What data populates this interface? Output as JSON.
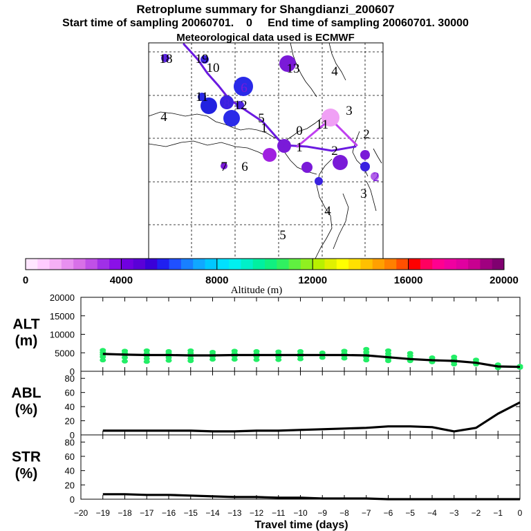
{
  "header": {
    "title": "Retroplume summary for Shangdianzi_200607",
    "sampling": "Start time of sampling 20060701.    0     End time of sampling 20060701. 30000",
    "met": "Meteorological data used is ECMWF"
  },
  "colorbar": {
    "label": "Altitude (m)",
    "ticks": [
      "0",
      "4000",
      "8000",
      "12000",
      "16000",
      "20000"
    ],
    "colors": [
      "#ffe6ff",
      "#ffccff",
      "#f5b0f5",
      "#e890f0",
      "#d870e8",
      "#c050e8",
      "#a030e8",
      "#8a10e8",
      "#7000e0",
      "#5a00d8",
      "#3a00d8",
      "#2020f0",
      "#2050ff",
      "#1880ff",
      "#10a8ff",
      "#00c8ff",
      "#00e0ff",
      "#00f0f0",
      "#00f0c8",
      "#00f0a0",
      "#10f080",
      "#30f060",
      "#60f040",
      "#90f020",
      "#b8f000",
      "#e0f000",
      "#ffff00",
      "#ffe000",
      "#ffc000",
      "#ffa000",
      "#ff8000",
      "#ff5000",
      "#ff0000",
      "#ff0060",
      "#ff0090",
      "#f000a0",
      "#e000a0",
      "#c80090",
      "#a00080",
      "#800070"
    ]
  },
  "map": {
    "labels": [
      {
        "text": "18",
        "color": "#000000"
      },
      {
        "text": "19",
        "color": "#000000"
      },
      {
        "text": "10",
        "color": "#000000"
      },
      {
        "text": "7",
        "color": "#7a1ad8"
      },
      {
        "text": "13",
        "color": "#000000"
      },
      {
        "text": "4",
        "color": "#000000"
      },
      {
        "text": "6",
        "color": "#7a1ad8"
      },
      {
        "text": "11",
        "color": "#000000"
      },
      {
        "text": "10",
        "color": "#2222e0"
      },
      {
        "text": "8",
        "color": "#4a22e0"
      },
      {
        "text": "12",
        "color": "#000000"
      },
      {
        "text": "5",
        "color": "#2a2ae8"
      },
      {
        "text": "4",
        "color": "#000000"
      },
      {
        "text": "5",
        "color": "#000000"
      },
      {
        "text": "1",
        "color": "#000000"
      },
      {
        "text": "0",
        "color": "#000000"
      },
      {
        "text": "11",
        "color": "#000000"
      },
      {
        "text": "3",
        "color": "#000000"
      },
      {
        "text": "2",
        "color": "#000000"
      },
      {
        "text": "4",
        "color": "#7a1ad8"
      },
      {
        "text": "1",
        "color": "#000000"
      },
      {
        "text": "5",
        "color": "#a020e0"
      },
      {
        "text": "2",
        "color": "#000000"
      },
      {
        "text": "3",
        "color": "#7a1ad8"
      },
      {
        "text": "8",
        "color": "#7a1ad8"
      },
      {
        "text": "4",
        "color": "#7a1ad8"
      },
      {
        "text": "7",
        "color": "#000000"
      },
      {
        "text": "6",
        "color": "#000000"
      },
      {
        "text": "2",
        "color": "#7a1ad8"
      },
      {
        "text": "3",
        "color": "#000000"
      },
      {
        "text": "4",
        "color": "#000000"
      },
      {
        "text": "5",
        "color": "#000000"
      }
    ]
  },
  "chart_data": [
    {
      "type": "scatter",
      "panel": "ALT",
      "ylabel": "ALT\n(m)",
      "ylabel_lines": [
        "ALT",
        "(m)"
      ],
      "xlim": [
        -20,
        0
      ],
      "ylim": [
        0,
        20000
      ],
      "yticks": [
        "20000",
        "15000",
        "10000",
        "5000",
        "0"
      ],
      "ytick_values": [
        20000,
        15000,
        10000,
        5000,
        0
      ],
      "x": [
        -19,
        -18,
        -17,
        -16,
        -15,
        -14,
        -13,
        -12,
        -11,
        -10,
        -9,
        -8,
        -7,
        -6,
        -5,
        -4,
        -3,
        -2,
        -1,
        0
      ],
      "mean_line": [
        4700,
        4500,
        4400,
        4400,
        4300,
        4300,
        4400,
        4400,
        4400,
        4400,
        4400,
        4400,
        4300,
        3800,
        3300,
        3000,
        2800,
        2300,
        1300,
        1200
      ],
      "points": [
        {
          "x": -19,
          "ys": [
            5700,
            5100,
            4500,
            3900,
            3000
          ]
        },
        {
          "x": -18,
          "ys": [
            5500,
            4900,
            4400,
            3700,
            2700
          ]
        },
        {
          "x": -17,
          "ys": [
            5600,
            4800,
            4200,
            3400,
            2600
          ]
        },
        {
          "x": -16,
          "ys": [
            5400,
            4900,
            4300,
            3700,
            2900
          ]
        },
        {
          "x": -15,
          "ys": [
            5600,
            4900,
            4200,
            3500,
            2800
          ]
        },
        {
          "x": -14,
          "ys": [
            5200,
            4600,
            4000,
            3200
          ]
        },
        {
          "x": -13,
          "ys": [
            5500,
            4800,
            4100,
            3200
          ]
        },
        {
          "x": -12,
          "ys": [
            5400,
            4700,
            4000,
            3100
          ]
        },
        {
          "x": -11,
          "ys": [
            5300,
            4600,
            3900,
            3100
          ]
        },
        {
          "x": -10,
          "ys": [
            5400,
            4700,
            4100,
            3300
          ]
        },
        {
          "x": -9,
          "ys": [
            5000,
            4400,
            3700
          ]
        },
        {
          "x": -8,
          "ys": [
            5500,
            4800,
            4200,
            3500
          ]
        },
        {
          "x": -7,
          "ys": [
            6000,
            5200,
            4500,
            3800,
            3000
          ]
        },
        {
          "x": -6,
          "ys": [
            5600,
            4800,
            4100,
            3400,
            2800
          ]
        },
        {
          "x": -5,
          "ys": [
            4900,
            4200,
            3500,
            2800
          ]
        },
        {
          "x": -4,
          "ys": [
            3700,
            3100,
            2500
          ]
        },
        {
          "x": -3,
          "ys": [
            3900,
            3200,
            2500,
            1900
          ]
        },
        {
          "x": -2,
          "ys": [
            3100,
            2500,
            1900
          ]
        },
        {
          "x": -1,
          "ys": [
            1800,
            1300,
            900
          ]
        },
        {
          "x": 0,
          "ys": [
            1400,
            1000
          ]
        }
      ],
      "point_color": "#22ee66"
    },
    {
      "type": "line",
      "panel": "ABL",
      "ylabel_lines": [
        "ABL",
        "(%)"
      ],
      "xlim": [
        -20,
        0
      ],
      "ylim": [
        0,
        100
      ],
      "yticks": [
        "80",
        "60",
        "40",
        "20",
        "0"
      ],
      "ytick_values": [
        80,
        60,
        40,
        20,
        0
      ],
      "x": [
        -19,
        -18,
        -17,
        -16,
        -15,
        -14,
        -13,
        -12,
        -11,
        -10,
        -9,
        -8,
        -7,
        -6,
        -5,
        -4,
        -3,
        -2,
        -1,
        0
      ],
      "values": [
        6,
        6,
        6,
        6,
        6,
        5,
        5,
        6,
        6,
        7,
        8,
        9,
        10,
        12,
        12,
        11,
        5,
        10,
        30,
        46
      ]
    },
    {
      "type": "line",
      "panel": "STR",
      "ylabel_lines": [
        "STR",
        "(%)"
      ],
      "xlim": [
        -20,
        0
      ],
      "ylim": [
        0,
        100
      ],
      "yticks": [
        "80",
        "60",
        "40",
        "20",
        "0"
      ],
      "ytick_values": [
        80,
        60,
        40,
        20,
        0
      ],
      "x": [
        -19,
        -18,
        -17,
        -16,
        -15,
        -14,
        -13,
        -12,
        -11,
        -10,
        -9,
        -8,
        -7,
        -6,
        -5,
        -4,
        -3,
        -2,
        -1,
        0
      ],
      "values": [
        7,
        7,
        6,
        6,
        5,
        4,
        3,
        3,
        2,
        2,
        1,
        1,
        1,
        0,
        0,
        0,
        0,
        0,
        0,
        0
      ],
      "xlabel": "Travel time (days)",
      "xticks": [
        "−20",
        "−19",
        "−18",
        "−17",
        "−16",
        "−15",
        "−14",
        "−13",
        "−12",
        "−11",
        "−10",
        "−9",
        "−8",
        "−7",
        "−6",
        "−5",
        "−4",
        "−3",
        "−2",
        "−1",
        "0"
      ]
    }
  ]
}
